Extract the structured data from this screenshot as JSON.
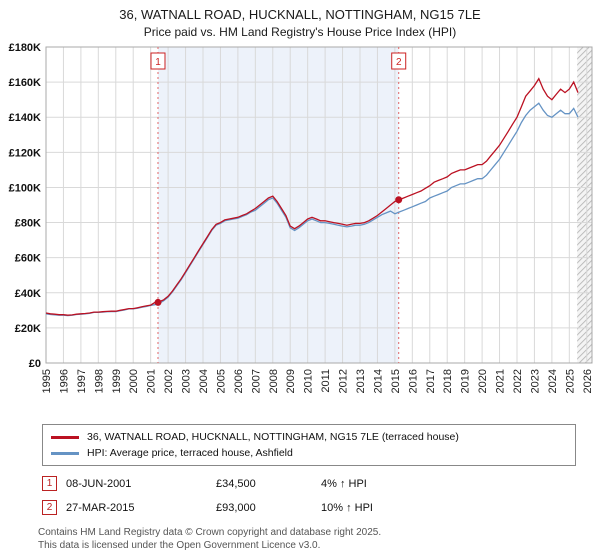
{
  "page": {
    "title_line1": "36, WATNALL ROAD, HUCKNALL, NOTTINGHAM, NG15 7LE",
    "title_line2": "Price paid vs. HM Land Registry's House Price Index (HPI)"
  },
  "chart_data": {
    "type": "line",
    "title": "36, WATNALL ROAD, HUCKNALL, NOTTINGHAM, NG15 7LE — Price paid vs. HPI",
    "x_start": 1995,
    "points_per_year": 4,
    "x_range": [
      1995,
      2026.3
    ],
    "y_range": [
      0,
      180
    ],
    "y_tick_step": 20,
    "y_tick_labels": [
      "£0",
      "£20K",
      "£40K",
      "£60K",
      "£80K",
      "£100K",
      "£120K",
      "£140K",
      "£160K",
      "£180K"
    ],
    "x_ticks": [
      1995,
      1996,
      1997,
      1998,
      1999,
      2000,
      2001,
      2002,
      2003,
      2004,
      2005,
      2006,
      2007,
      2008,
      2009,
      2010,
      2011,
      2012,
      2013,
      2014,
      2015,
      2016,
      2017,
      2018,
      2019,
      2020,
      2021,
      2022,
      2023,
      2024,
      2025,
      2026
    ],
    "grid": true,
    "legend_position": "bottom",
    "series": [
      {
        "name": "36, WATNALL ROAD, HUCKNALL, NOTTINGHAM, NG15 7LE (terraced house)",
        "color": "#bb1122",
        "values": [
          28.5,
          28,
          27.8,
          27.5,
          27.5,
          27.2,
          27.4,
          27.8,
          28,
          28.2,
          28.5,
          29,
          29,
          29.2,
          29.4,
          29.5,
          29.5,
          30,
          30.5,
          31,
          31,
          31.5,
          32,
          32.5,
          33,
          34.5,
          35,
          36,
          38,
          41,
          44.5,
          48,
          52,
          56,
          60,
          64,
          68,
          72,
          76,
          79,
          80,
          81.5,
          82,
          82.5,
          83,
          84,
          85,
          86.5,
          88,
          90,
          92,
          94,
          95,
          92,
          88,
          84,
          78,
          76.5,
          78,
          80,
          82,
          83,
          82,
          81,
          81,
          80.5,
          80,
          79.5,
          79,
          78.5,
          79,
          79.5,
          79.5,
          80,
          81,
          82.5,
          84,
          86,
          88,
          90,
          92,
          93,
          94,
          95,
          96,
          97,
          98,
          99.5,
          101,
          103,
          104,
          105,
          106,
          108,
          109,
          110,
          110,
          111,
          112,
          113,
          113,
          115,
          118,
          121,
          124,
          128,
          132,
          136,
          140,
          146,
          152,
          155,
          158,
          162,
          156,
          152,
          150,
          153,
          156,
          154,
          156,
          160,
          154
        ]
      },
      {
        "name": "HPI: Average price, terraced house, Ashfield",
        "color": "#6593c4",
        "values": [
          28,
          27.6,
          27.4,
          27.2,
          27.2,
          27,
          27.2,
          27.6,
          27.8,
          28,
          28.3,
          28.8,
          28.8,
          29,
          29.2,
          29.3,
          29.3,
          29.8,
          30.2,
          30.8,
          30.8,
          31.2,
          31.8,
          32.2,
          32.8,
          33.2,
          34,
          35.5,
          37.5,
          40.5,
          44,
          47.5,
          51.5,
          55.5,
          59.5,
          63.5,
          67.5,
          71.5,
          75.5,
          78.5,
          79.5,
          81,
          81.5,
          82,
          82.5,
          83.5,
          84.5,
          86,
          87,
          89,
          91,
          93,
          94,
          91,
          87,
          83,
          77,
          75.5,
          77,
          79,
          81,
          82,
          81,
          80,
          80,
          79.5,
          79,
          78.5,
          78,
          77.5,
          78,
          78.5,
          78.5,
          79,
          80,
          81.5,
          83,
          84.5,
          85.5,
          86.5,
          85,
          86,
          87,
          88,
          89,
          90,
          91,
          92,
          94,
          95,
          96,
          97,
          98,
          100,
          101,
          102,
          102,
          103,
          104,
          105,
          105,
          107,
          110,
          113,
          116,
          120,
          124,
          128,
          132,
          137,
          141,
          144,
          146,
          148,
          144,
          141,
          140,
          142,
          144,
          142,
          142,
          145,
          140
        ]
      }
    ],
    "markers": [
      {
        "label": "1",
        "x": 2001.42,
        "y": 34.5
      },
      {
        "label": "2",
        "x": 2015.22,
        "y": 93
      }
    ],
    "shaded_region": [
      2001.42,
      2015.22
    ],
    "hatched_region": [
      2025.45,
      2026.3
    ],
    "colors": {
      "grid": "#d9d9d9",
      "border": "#aaaaaa",
      "shade": "#edf2fa",
      "marker_line": "#e06666",
      "annotation": "#cc2222"
    }
  },
  "legend": {
    "items": [
      {
        "label": "36, WATNALL ROAD, HUCKNALL, NOTTINGHAM, NG15 7LE (terraced house)",
        "color": "#bb1122"
      },
      {
        "label": "HPI: Average price, terraced house, Ashfield",
        "color": "#6593c4"
      }
    ]
  },
  "transactions": [
    {
      "num": "1",
      "date": "08-JUN-2001",
      "price": "£34,500",
      "delta": "4% ↑ HPI"
    },
    {
      "num": "2",
      "date": "27-MAR-2015",
      "price": "£93,000",
      "delta": "10% ↑ HPI"
    }
  ],
  "footer": {
    "line1": "Contains HM Land Registry data © Crown copyright and database right 2025.",
    "line2": "This data is licensed under the Open Government Licence v3.0."
  }
}
